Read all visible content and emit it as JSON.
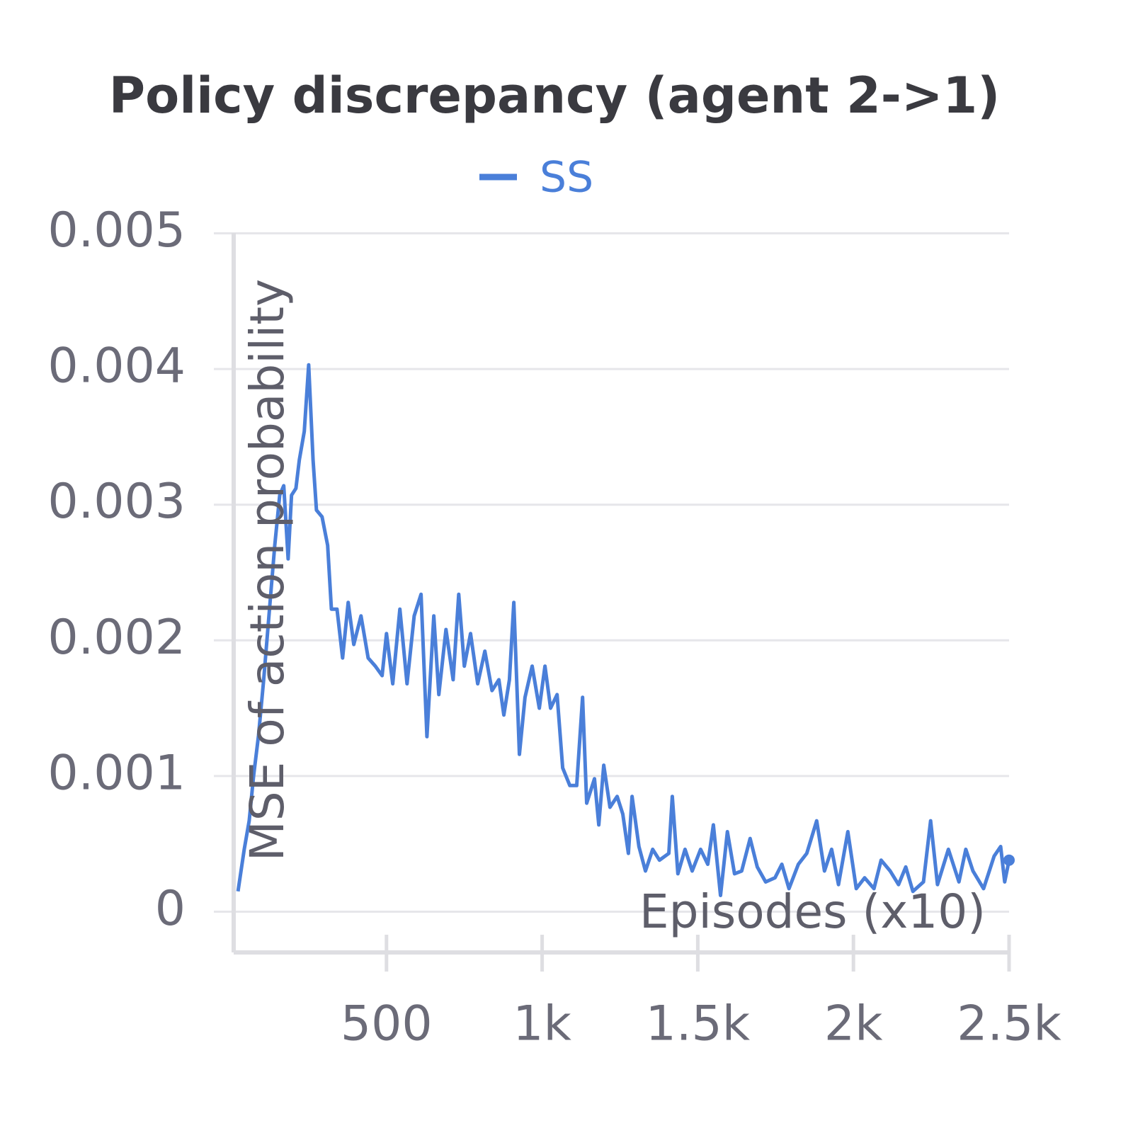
{
  "chart_data": {
    "type": "line",
    "title": "Policy discrepancy (agent 2->1)",
    "x_label": "Episodes (x10)",
    "y_label": "MSE of action probability",
    "xlim": [
      0,
      2500
    ],
    "ylim": [
      -0.0003,
      0.00518
    ],
    "xticks": [
      500,
      {
        "value": 1000,
        "label": "1k"
      },
      {
        "value": 1500,
        "label": "1.5k"
      },
      {
        "value": 2000,
        "label": "2k"
      },
      {
        "value": 2500,
        "label": "2.5k"
      }
    ],
    "yticks": [
      0,
      0.001,
      0.002,
      0.003,
      0.004,
      0.005
    ],
    "grid": true,
    "legend": "top",
    "series": [
      {
        "name": "SS",
        "color": "#4a7fd9",
        "x": [
          23,
          43,
          59,
          73,
          89,
          105,
          123,
          141,
          157,
          170,
          184,
          195,
          209,
          220,
          236,
          250,
          264,
          275,
          293,
          311,
          323,
          341,
          359,
          377,
          395,
          418,
          441,
          464,
          486,
          500,
          520,
          543,
          566,
          589,
          611,
          630,
          652,
          668,
          691,
          714,
          732,
          750,
          770,
          793,
          816,
          839,
          861,
          877,
          895,
          909,
          927,
          945,
          968,
          991,
          1009,
          1027,
          1048,
          1066,
          1089,
          1111,
          1130,
          1143,
          1168,
          1182,
          1198,
          1218,
          1241,
          1259,
          1277,
          1289,
          1311,
          1332,
          1355,
          1377,
          1407,
          1418,
          1436,
          1459,
          1482,
          1509,
          1532,
          1550,
          1573,
          1595,
          1618,
          1641,
          1668,
          1691,
          1718,
          1748,
          1770,
          1793,
          1823,
          1850,
          1882,
          1907,
          1930,
          1952,
          1982,
          2009,
          2036,
          2066,
          2089,
          2118,
          2145,
          2168,
          2191,
          2225,
          2248,
          2270,
          2305,
          2339,
          2361,
          2384,
          2418,
          2452,
          2473,
          2486,
          2500
        ],
        "values": [
          0.00015,
          0.00046,
          0.00067,
          0.001,
          0.0013,
          0.0017,
          0.0022,
          0.0027,
          0.00307,
          0.00314,
          0.0026,
          0.00307,
          0.00312,
          0.00333,
          0.00354,
          0.00403,
          0.00333,
          0.00296,
          0.00291,
          0.0027,
          0.00223,
          0.00223,
          0.00187,
          0.00228,
          0.00197,
          0.00218,
          0.00187,
          0.00181,
          0.00174,
          0.00205,
          0.00168,
          0.00223,
          0.00168,
          0.00218,
          0.00234,
          0.00129,
          0.00218,
          0.0016,
          0.00208,
          0.00171,
          0.00234,
          0.00181,
          0.00205,
          0.00168,
          0.00192,
          0.00163,
          0.00171,
          0.00145,
          0.00171,
          0.00228,
          0.00116,
          0.00158,
          0.00181,
          0.0015,
          0.00181,
          0.0015,
          0.0016,
          0.00106,
          0.00093,
          0.00093,
          0.00158,
          0.0008,
          0.00098,
          0.00064,
          0.00108,
          0.00077,
          0.00085,
          0.00072,
          0.00043,
          0.00085,
          0.00048,
          0.0003,
          0.00046,
          0.00038,
          0.00043,
          0.00085,
          0.00028,
          0.00046,
          0.0003,
          0.00046,
          0.00035,
          0.00064,
          0.00012,
          0.00059,
          0.00028,
          0.0003,
          0.00054,
          0.00033,
          0.00022,
          0.00025,
          0.00035,
          0.00017,
          0.00035,
          0.00043,
          0.00067,
          0.0003,
          0.00046,
          0.0002,
          0.00059,
          0.00017,
          0.00025,
          0.00017,
          0.00038,
          0.0003,
          0.0002,
          0.00033,
          0.00015,
          0.00022,
          0.00067,
          0.0002,
          0.00046,
          0.00022,
          0.00046,
          0.0003,
          0.00017,
          0.00041,
          0.00048,
          0.00022,
          0.00038
        ]
      }
    ]
  }
}
